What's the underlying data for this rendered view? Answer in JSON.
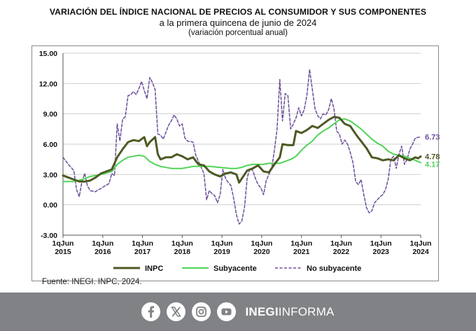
{
  "title": "VARIACIÓN DEL ÍNDICE NACIONAL DE PRECIOS AL CONSUMIDOR Y SUS COMPONENTES",
  "subtitle": "a la primera quincena de junio de 2024",
  "subtitle2": "(variación porcentual anual)",
  "source": "Fuente: INEGI. INPC, 2024.",
  "footer": {
    "brand_bold": "INEGI",
    "brand_light": "INFORMA",
    "icons": [
      "facebook-icon",
      "x-icon",
      "instagram-icon",
      "youtube-icon"
    ],
    "background": "#808285"
  },
  "chart_data": {
    "type": "line",
    "ylim": [
      -3,
      15
    ],
    "yticks": [
      "15.00",
      "12.00",
      "9.00",
      "6.00",
      "3.00",
      "0.00",
      "-3.00"
    ],
    "x_tick_labels": [
      [
        "1qJun",
        "2015"
      ],
      [
        "1qJun",
        "2016"
      ],
      [
        "1qJun",
        "2017"
      ],
      [
        "1qJun",
        "2018"
      ],
      [
        "1qJun",
        "2019"
      ],
      [
        "1qJun",
        "2020"
      ],
      [
        "1qJun",
        "2021"
      ],
      [
        "1qJun",
        "2022"
      ],
      [
        "1qJun",
        "2023"
      ],
      [
        "1qJun",
        "2024"
      ]
    ],
    "grid": true,
    "legend_position": "bottom",
    "x_unit": "fortnights since 1qJun 2015",
    "series": [
      {
        "name": "INPC",
        "color": "#4d5a24",
        "style": "solid",
        "end_label": "4.78",
        "points": [
          [
            0,
            2.9
          ],
          [
            4,
            2.7
          ],
          [
            8,
            2.5
          ],
          [
            12,
            2.3
          ],
          [
            16,
            2.3
          ],
          [
            20,
            2.4
          ],
          [
            24,
            2.7
          ],
          [
            28,
            3.1
          ],
          [
            32,
            3.3
          ],
          [
            36,
            3.5
          ],
          [
            40,
            4.7
          ],
          [
            44,
            5.5
          ],
          [
            48,
            6.2
          ],
          [
            52,
            6.4
          ],
          [
            56,
            6.3
          ],
          [
            60,
            6.7
          ],
          [
            62,
            5.8
          ],
          [
            64,
            6.2
          ],
          [
            68,
            6.7
          ],
          [
            70,
            5.0
          ],
          [
            72,
            4.5
          ],
          [
            76,
            4.7
          ],
          [
            80,
            4.7
          ],
          [
            84,
            5.0
          ],
          [
            88,
            4.8
          ],
          [
            92,
            4.5
          ],
          [
            96,
            4.7
          ],
          [
            100,
            4.0
          ],
          [
            104,
            3.9
          ],
          [
            108,
            3.3
          ],
          [
            112,
            3.0
          ],
          [
            116,
            2.8
          ],
          [
            120,
            3.1
          ],
          [
            124,
            3.2
          ],
          [
            128,
            3.0
          ],
          [
            130,
            2.2
          ],
          [
            132,
            2.6
          ],
          [
            136,
            3.4
          ],
          [
            140,
            3.6
          ],
          [
            144,
            3.9
          ],
          [
            148,
            3.3
          ],
          [
            152,
            3.2
          ],
          [
            156,
            4.0
          ],
          [
            160,
            4.7
          ],
          [
            162,
            6.0
          ],
          [
            166,
            5.9
          ],
          [
            170,
            5.9
          ],
          [
            172,
            7.3
          ],
          [
            176,
            7.1
          ],
          [
            180,
            7.4
          ],
          [
            184,
            7.8
          ],
          [
            188,
            7.6
          ],
          [
            192,
            8.0
          ],
          [
            196,
            8.4
          ],
          [
            200,
            8.7
          ],
          [
            204,
            8.6
          ],
          [
            208,
            8.0
          ],
          [
            212,
            7.8
          ],
          [
            216,
            7.0
          ],
          [
            220,
            6.3
          ],
          [
            224,
            5.6
          ],
          [
            228,
            4.7
          ],
          [
            232,
            4.6
          ],
          [
            236,
            4.4
          ],
          [
            240,
            4.5
          ],
          [
            244,
            4.4
          ],
          [
            248,
            4.9
          ],
          [
            252,
            4.6
          ],
          [
            256,
            4.4
          ],
          [
            260,
            4.7
          ],
          [
            262,
            4.6
          ],
          [
            264,
            4.78
          ]
        ]
      },
      {
        "name": "Subyacente",
        "color": "#4fd455",
        "style": "solid",
        "end_label": "4.17",
        "points": [
          [
            0,
            2.3
          ],
          [
            8,
            2.3
          ],
          [
            14,
            2.5
          ],
          [
            20,
            2.8
          ],
          [
            28,
            3.0
          ],
          [
            36,
            3.3
          ],
          [
            40,
            4.0
          ],
          [
            44,
            4.4
          ],
          [
            48,
            4.7
          ],
          [
            52,
            4.8
          ],
          [
            56,
            4.9
          ],
          [
            60,
            4.8
          ],
          [
            64,
            4.3
          ],
          [
            68,
            4.0
          ],
          [
            72,
            3.8
          ],
          [
            80,
            3.6
          ],
          [
            88,
            3.6
          ],
          [
            96,
            3.8
          ],
          [
            100,
            3.8
          ],
          [
            108,
            3.8
          ],
          [
            116,
            3.7
          ],
          [
            124,
            3.6
          ],
          [
            128,
            3.6
          ],
          [
            132,
            3.7
          ],
          [
            136,
            3.9
          ],
          [
            140,
            4.0
          ],
          [
            144,
            4.0
          ],
          [
            148,
            4.0
          ],
          [
            152,
            4.1
          ],
          [
            156,
            4.1
          ],
          [
            160,
            4.1
          ],
          [
            164,
            4.3
          ],
          [
            168,
            4.5
          ],
          [
            172,
            4.8
          ],
          [
            176,
            5.4
          ],
          [
            180,
            5.9
          ],
          [
            184,
            6.3
          ],
          [
            188,
            6.9
          ],
          [
            192,
            7.3
          ],
          [
            196,
            7.6
          ],
          [
            200,
            8.0
          ],
          [
            204,
            8.4
          ],
          [
            208,
            8.5
          ],
          [
            212,
            8.3
          ],
          [
            216,
            7.9
          ],
          [
            220,
            7.5
          ],
          [
            224,
            7.0
          ],
          [
            228,
            6.5
          ],
          [
            232,
            6.1
          ],
          [
            236,
            5.8
          ],
          [
            240,
            5.3
          ],
          [
            244,
            5.0
          ],
          [
            248,
            4.9
          ],
          [
            252,
            4.8
          ],
          [
            256,
            4.6
          ],
          [
            260,
            4.4
          ],
          [
            264,
            4.17
          ]
        ]
      },
      {
        "name": "No subyacente",
        "color": "#6b4d9a",
        "style": "dashed",
        "end_label": "6.73",
        "points": [
          [
            0,
            4.7
          ],
          [
            4,
            4.0
          ],
          [
            8,
            3.4
          ],
          [
            10,
            1.5
          ],
          [
            12,
            0.8
          ],
          [
            14,
            2.3
          ],
          [
            16,
            3.1
          ],
          [
            18,
            1.9
          ],
          [
            20,
            1.4
          ],
          [
            24,
            1.3
          ],
          [
            26,
            1.5
          ],
          [
            28,
            1.6
          ],
          [
            30,
            1.8
          ],
          [
            34,
            2.1
          ],
          [
            36,
            3.1
          ],
          [
            38,
            2.9
          ],
          [
            40,
            8.0
          ],
          [
            42,
            6.3
          ],
          [
            44,
            8.5
          ],
          [
            46,
            8.7
          ],
          [
            48,
            10.8
          ],
          [
            50,
            10.9
          ],
          [
            52,
            11.2
          ],
          [
            54,
            10.9
          ],
          [
            56,
            11.5
          ],
          [
            58,
            12.2
          ],
          [
            60,
            11.3
          ],
          [
            62,
            10.5
          ],
          [
            64,
            12.6
          ],
          [
            66,
            12.1
          ],
          [
            68,
            11.4
          ],
          [
            70,
            7.0
          ],
          [
            72,
            6.9
          ],
          [
            74,
            6.5
          ],
          [
            76,
            7.2
          ],
          [
            78,
            7.9
          ],
          [
            80,
            8.3
          ],
          [
            82,
            8.9
          ],
          [
            84,
            8.5
          ],
          [
            86,
            7.8
          ],
          [
            88,
            8.0
          ],
          [
            90,
            6.6
          ],
          [
            92,
            6.3
          ],
          [
            96,
            6.2
          ],
          [
            98,
            4.9
          ],
          [
            100,
            4.3
          ],
          [
            104,
            3.1
          ],
          [
            106,
            0.5
          ],
          [
            108,
            1.4
          ],
          [
            110,
            1.1
          ],
          [
            112,
            0.9
          ],
          [
            114,
            0.2
          ],
          [
            116,
            1.0
          ],
          [
            118,
            3.5
          ],
          [
            120,
            2.6
          ],
          [
            122,
            2.2
          ],
          [
            124,
            1.9
          ],
          [
            126,
            0.6
          ],
          [
            128,
            -1.0
          ],
          [
            130,
            -1.9
          ],
          [
            132,
            -1.6
          ],
          [
            134,
            -0.2
          ],
          [
            136,
            2.7
          ],
          [
            138,
            3.6
          ],
          [
            140,
            3.4
          ],
          [
            142,
            2.6
          ],
          [
            144,
            2.0
          ],
          [
            146,
            1.7
          ],
          [
            148,
            1.0
          ],
          [
            150,
            2.4
          ],
          [
            152,
            3.0
          ],
          [
            154,
            3.6
          ],
          [
            156,
            5.4
          ],
          [
            158,
            7.5
          ],
          [
            160,
            12.4
          ],
          [
            162,
            8.3
          ],
          [
            164,
            11.0
          ],
          [
            166,
            10.8
          ],
          [
            168,
            7.5
          ],
          [
            170,
            8.0
          ],
          [
            172,
            8.6
          ],
          [
            174,
            9.6
          ],
          [
            176,
            8.8
          ],
          [
            178,
            9.4
          ],
          [
            180,
            10.8
          ],
          [
            182,
            13.4
          ],
          [
            184,
            11.4
          ],
          [
            186,
            9.5
          ],
          [
            188,
            8.8
          ],
          [
            190,
            8.5
          ],
          [
            192,
            9.0
          ],
          [
            194,
            8.9
          ],
          [
            196,
            9.4
          ],
          [
            198,
            10.5
          ],
          [
            200,
            9.5
          ],
          [
            202,
            7.3
          ],
          [
            204,
            7.0
          ],
          [
            206,
            6.0
          ],
          [
            208,
            6.4
          ],
          [
            210,
            6.0
          ],
          [
            212,
            5.2
          ],
          [
            214,
            4.2
          ],
          [
            216,
            2.3
          ],
          [
            218,
            2.0
          ],
          [
            220,
            2.5
          ],
          [
            222,
            1.0
          ],
          [
            224,
            -0.3
          ],
          [
            226,
            -0.8
          ],
          [
            228,
            -0.6
          ],
          [
            230,
            0.2
          ],
          [
            232,
            0.5
          ],
          [
            234,
            0.8
          ],
          [
            236,
            1.0
          ],
          [
            238,
            1.5
          ],
          [
            240,
            2.5
          ],
          [
            242,
            4.5
          ],
          [
            244,
            4.8
          ],
          [
            246,
            3.6
          ],
          [
            248,
            5.0
          ],
          [
            250,
            5.8
          ],
          [
            252,
            4.0
          ],
          [
            254,
            4.5
          ],
          [
            256,
            5.5
          ],
          [
            258,
            6.0
          ],
          [
            260,
            6.6
          ],
          [
            264,
            6.73
          ]
        ]
      }
    ]
  }
}
